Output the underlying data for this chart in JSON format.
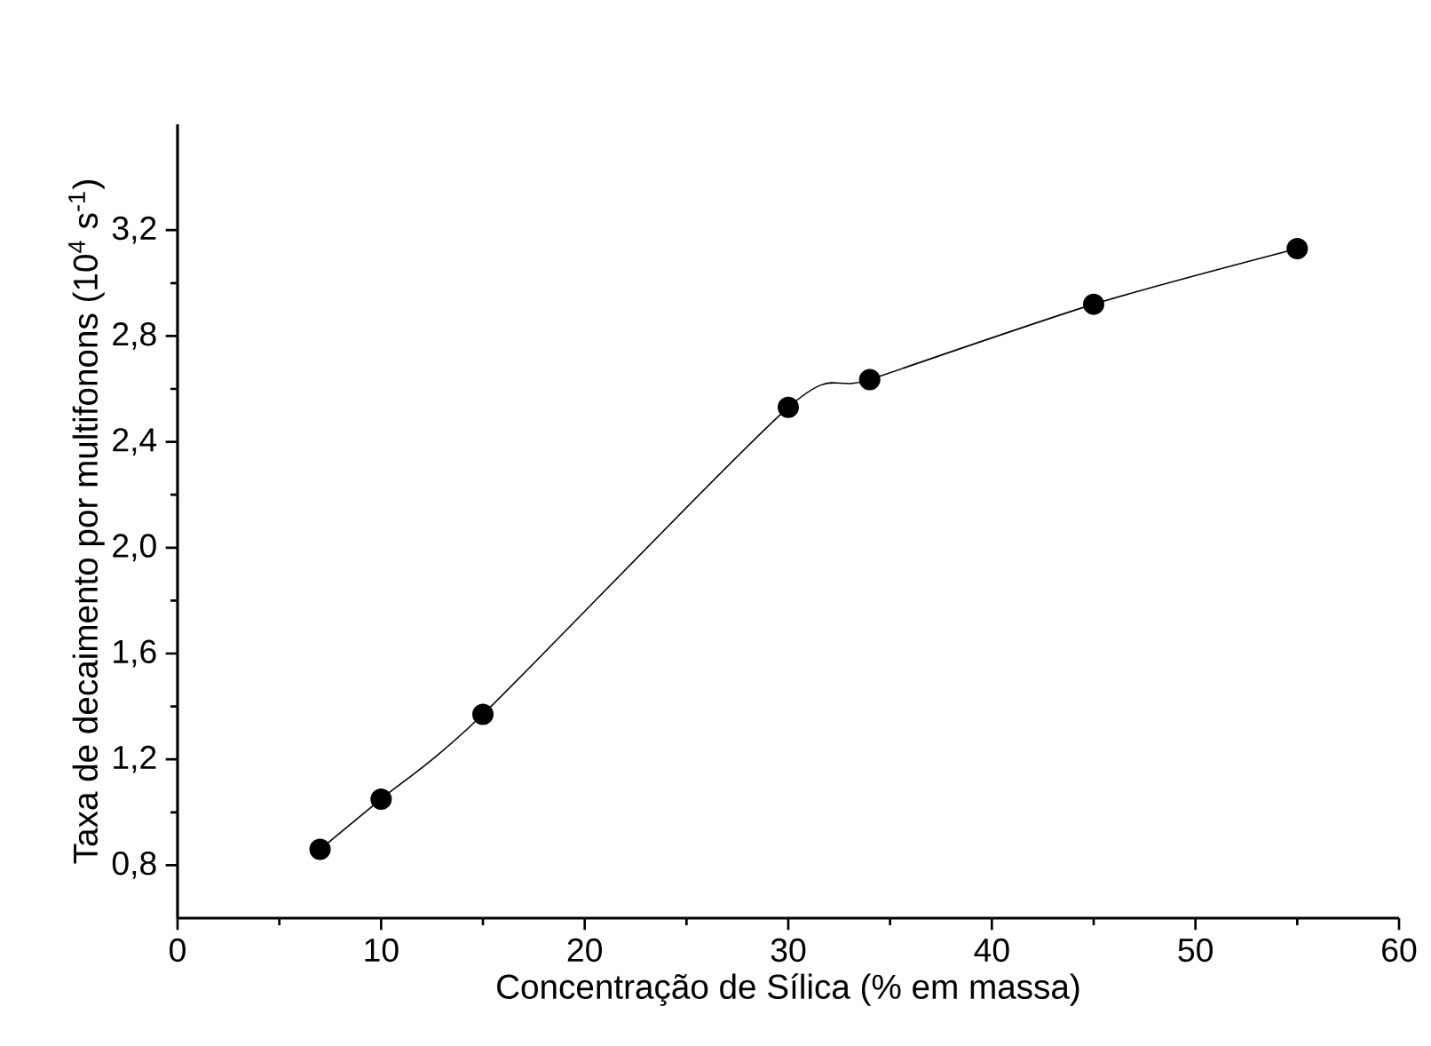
{
  "chart_data": {
    "type": "line",
    "xlabel": "Concentração de Sílica (% em massa)",
    "ylabel": "Taxa de decaimento por  multifonons (10$^{4}$ s$^{-1}$)",
    "x": [
      7,
      10,
      15,
      30,
      34,
      45,
      55
    ],
    "series": [
      {
        "color": "#000000",
        "values": [
          0.86,
          1.05,
          1.37,
          2.53,
          2.635,
          2.92,
          3.13
        ]
      }
    ],
    "marker": "circle",
    "grid": false,
    "xlim": [
      0,
      60
    ],
    "xticks": [
      0,
      10,
      20,
      30,
      40,
      50,
      60
    ],
    "ylim": [
      0.6,
      3.6
    ],
    "yticks": [
      {
        "value": 0.8,
        "label": "0,8"
      },
      {
        "value": 1.2,
        "label": "1,2"
      },
      {
        "value": 1.6,
        "label": "1,6"
      },
      {
        "value": 2.0,
        "label": "2,0"
      },
      {
        "value": 2.4,
        "label": "2,4"
      },
      {
        "value": 2.8,
        "label": "2,8"
      },
      {
        "value": 3.2,
        "label": "3,2"
      }
    ]
  }
}
